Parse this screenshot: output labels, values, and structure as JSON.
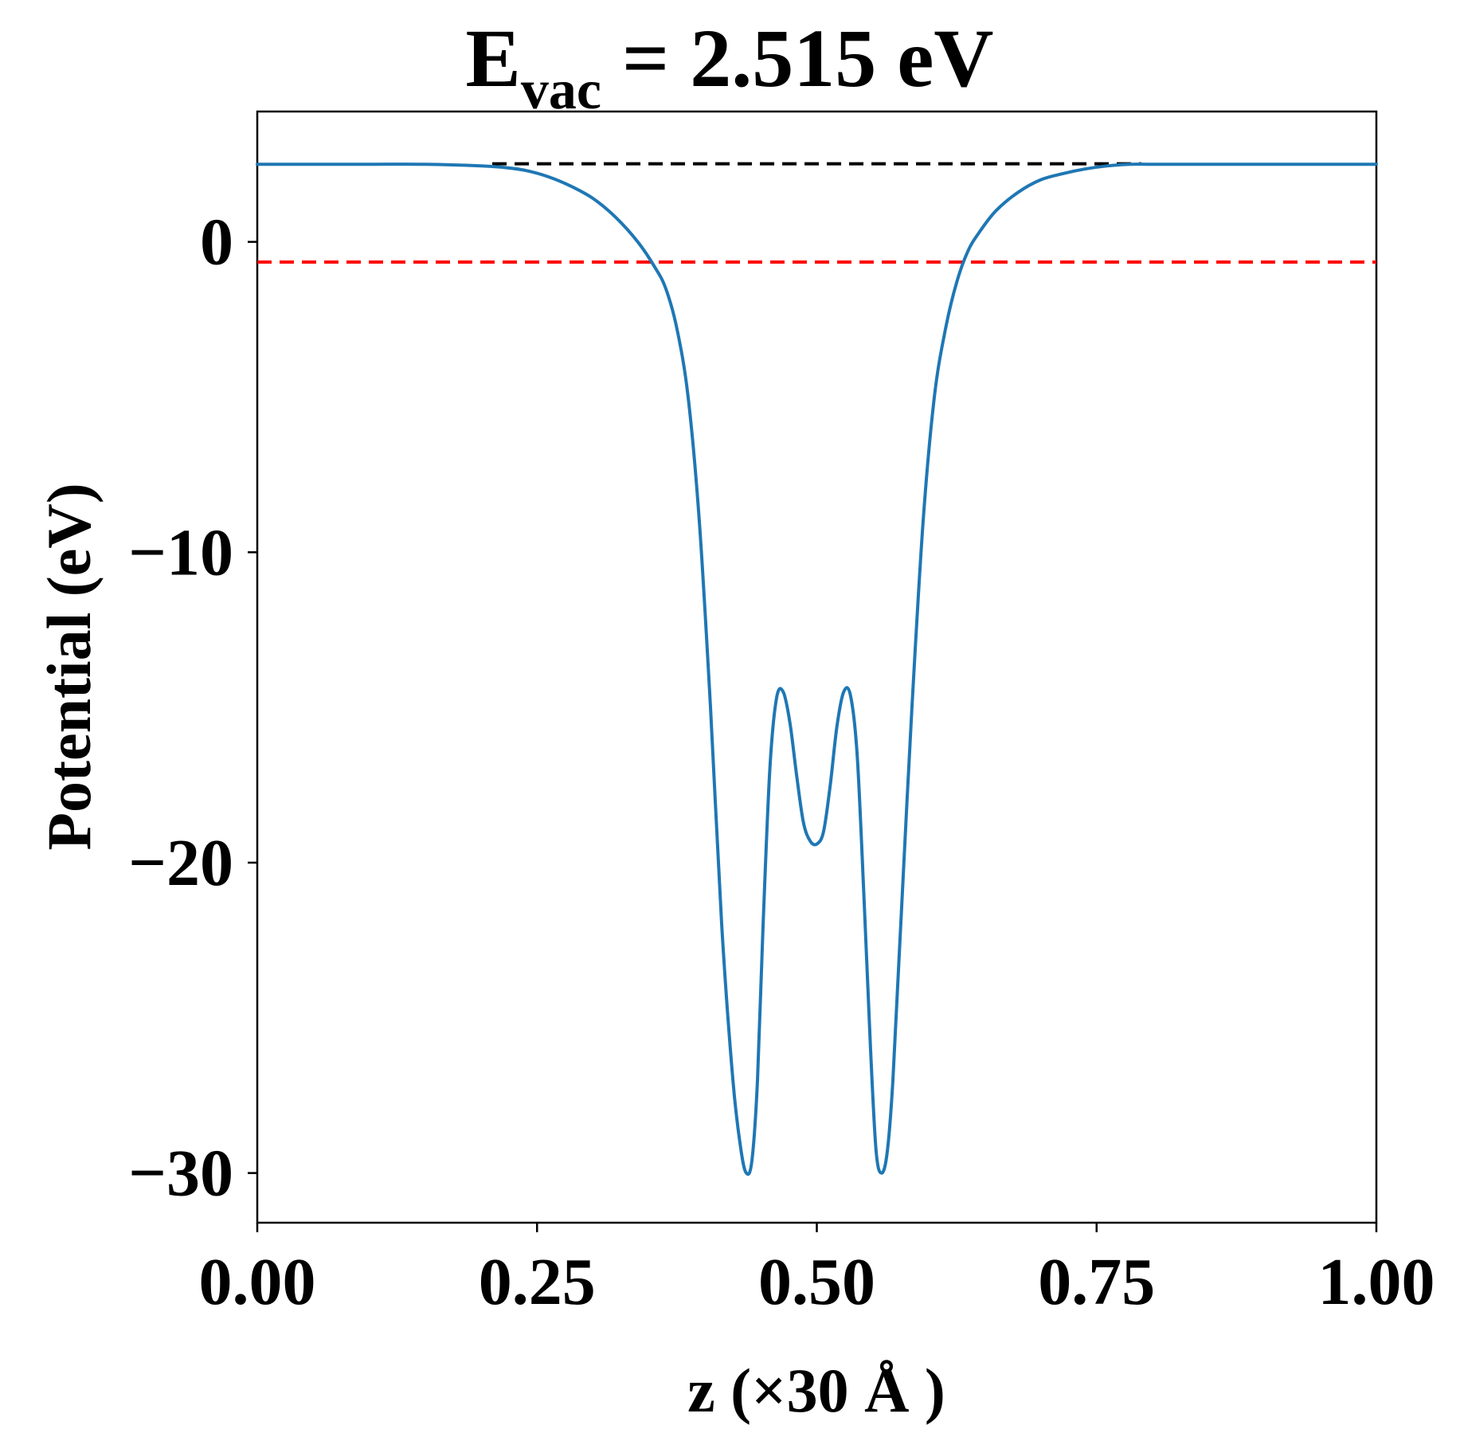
{
  "chart_data": {
    "type": "line",
    "title": {
      "main": "E",
      "subscript": "vac",
      "rest": " = 2.515 eV"
    },
    "xlabel": "z (×30 Å )",
    "ylabel": "Potential (eV)",
    "xlim": [
      0.0,
      1.0
    ],
    "ylim": [
      -31.6,
      4.2
    ],
    "xticks": [
      0.0,
      0.25,
      0.5,
      0.75,
      1.0
    ],
    "xtick_labels": [
      "0.00",
      "0.25",
      "0.50",
      "0.75",
      "1.00"
    ],
    "yticks": [
      0,
      -10,
      -20,
      -30
    ],
    "ytick_labels": [
      "0",
      "−10",
      "−20",
      "−30"
    ],
    "grid": false,
    "legend": "none",
    "reference_lines": [
      {
        "kind": "horizontal-dashed",
        "y": 2.515,
        "xmin": 0.21,
        "xmax": 0.79,
        "color": "#000000"
      },
      {
        "kind": "horizontal-dashed",
        "y": -0.65,
        "xmin": 0.0,
        "xmax": 1.0,
        "color": "#ff0000"
      }
    ],
    "series": [
      {
        "color": "#1f77b4",
        "x": [
          0.0,
          0.05,
          0.1,
          0.15,
          0.2,
          0.22,
          0.24,
          0.26,
          0.28,
          0.3,
          0.32,
          0.34,
          0.355,
          0.365,
          0.375,
          0.385,
          0.395,
          0.405,
          0.415,
          0.425,
          0.432,
          0.437,
          0.442,
          0.447,
          0.452,
          0.458,
          0.464,
          0.47,
          0.476,
          0.482,
          0.488,
          0.494,
          0.5,
          0.506,
          0.512,
          0.518,
          0.524,
          0.53,
          0.536,
          0.542,
          0.548,
          0.553,
          0.558,
          0.563,
          0.568,
          0.575,
          0.585,
          0.595,
          0.605,
          0.615,
          0.625,
          0.635,
          0.645,
          0.66,
          0.68,
          0.7,
          0.72,
          0.74,
          0.76,
          0.78,
          0.8,
          0.85,
          0.9,
          0.95,
          1.0
        ],
        "y": [
          2.5,
          2.5,
          2.5,
          2.5,
          2.45,
          2.4,
          2.3,
          2.1,
          1.8,
          1.4,
          0.8,
          0.0,
          -0.8,
          -1.5,
          -2.8,
          -5.0,
          -9.0,
          -15.0,
          -22.0,
          -27.0,
          -29.2,
          -30.0,
          -29.6,
          -27.0,
          -22.0,
          -17.0,
          -14.7,
          -14.5,
          -15.5,
          -17.2,
          -18.7,
          -19.3,
          -19.4,
          -19.0,
          -17.5,
          -15.6,
          -14.5,
          -14.6,
          -16.5,
          -21.0,
          -26.0,
          -29.3,
          -30.0,
          -29.3,
          -27.0,
          -22.0,
          -15.0,
          -9.0,
          -5.0,
          -2.8,
          -1.3,
          -0.3,
          0.3,
          1.0,
          1.6,
          2.0,
          2.2,
          2.35,
          2.45,
          2.5,
          2.5,
          2.5,
          2.5,
          2.5,
          2.5
        ]
      }
    ]
  }
}
